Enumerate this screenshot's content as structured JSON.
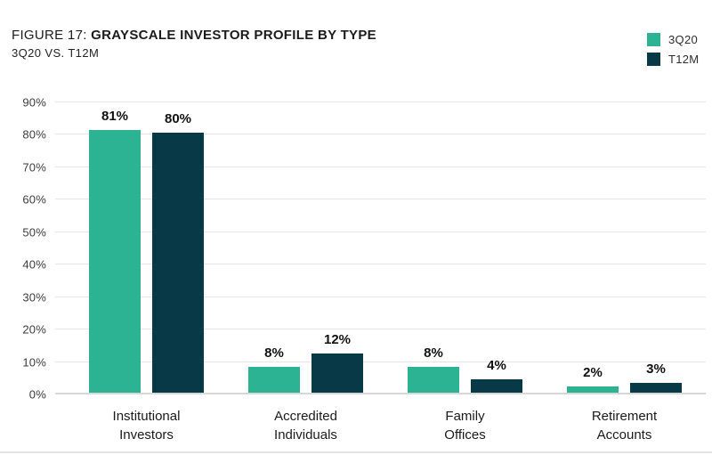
{
  "header": {
    "figure_label": "FIGURE 17:",
    "title": "GRAYSCALE INVESTOR PROFILE BY TYPE",
    "subtitle": "3Q20 VS. T12M"
  },
  "chart_data": {
    "type": "bar",
    "title": "GRAYSCALE INVESTOR PROFILE BY TYPE",
    "subtitle": "3Q20 VS. T12M",
    "categories": [
      "Institutional Investors",
      "Accredited Individuals",
      "Family Offices",
      "Retirement Accounts"
    ],
    "series": [
      {
        "name": "3Q20",
        "color": "#2BB394",
        "values": [
          81,
          8,
          8,
          2
        ]
      },
      {
        "name": "T12M",
        "color": "#073947",
        "values": [
          80,
          12,
          4,
          3
        ]
      }
    ],
    "ylim": [
      0,
      90
    ],
    "ytick_step": 10,
    "ytick_suffix": "%",
    "data_label_suffix": "%",
    "grid": true,
    "legend_position": "top-right",
    "xlabel": "",
    "ylabel": ""
  }
}
